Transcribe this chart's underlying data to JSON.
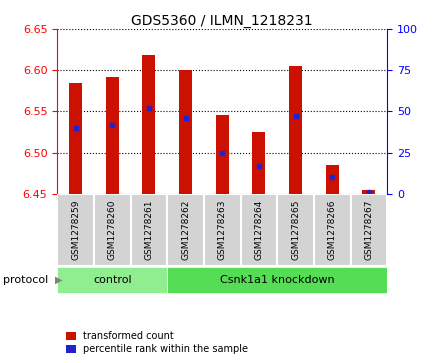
{
  "title": "GDS5360 / ILMN_1218231",
  "samples": [
    "GSM1278259",
    "GSM1278260",
    "GSM1278261",
    "GSM1278262",
    "GSM1278263",
    "GSM1278264",
    "GSM1278265",
    "GSM1278266",
    "GSM1278267"
  ],
  "bar_bottoms": [
    6.45,
    6.45,
    6.45,
    6.45,
    6.45,
    6.45,
    6.45,
    6.45,
    6.45
  ],
  "bar_tops": [
    6.585,
    6.592,
    6.618,
    6.6,
    6.545,
    6.525,
    6.605,
    6.485,
    6.455
  ],
  "percentile_values": [
    40,
    42,
    52,
    46,
    25,
    17,
    47,
    10,
    1
  ],
  "ylim_left": [
    6.45,
    6.65
  ],
  "ylim_right": [
    0,
    100
  ],
  "yticks_left": [
    6.45,
    6.5,
    6.55,
    6.6,
    6.65
  ],
  "yticks_right": [
    0,
    25,
    50,
    75,
    100
  ],
  "bar_color": "#cc1100",
  "marker_color": "#2222cc",
  "cell_color": "#d3d3d3",
  "cell_edge_color": "#ffffff",
  "control_color": "#90ee90",
  "knockdown_color": "#55dd55",
  "protocol_groups": {
    "control": [
      0,
      1,
      2
    ],
    "Csnk1a1 knockdown": [
      3,
      4,
      5,
      6,
      7,
      8
    ]
  },
  "bar_width": 0.35
}
